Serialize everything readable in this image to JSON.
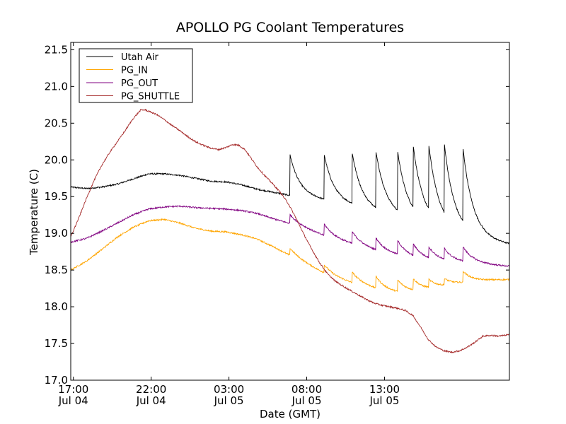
{
  "chart_data": {
    "type": "line",
    "title": "APOLLO PG Coolant Temperatures",
    "xlabel": "Date (GMT)",
    "ylabel": "Temperature (C)",
    "x_unit": "hours since Jul 04 16:50 GMT",
    "xlim": [
      0,
      28.2
    ],
    "ylim": [
      17.0,
      21.6
    ],
    "y_ticks": [
      "17.0",
      "17.5",
      "18.0",
      "18.5",
      "19.0",
      "19.5",
      "20.0",
      "20.5",
      "21.0",
      "21.5"
    ],
    "y_tick_values": [
      17.0,
      17.5,
      18.0,
      18.5,
      19.0,
      19.5,
      20.0,
      20.5,
      21.0,
      21.5
    ],
    "x_ticks": [
      {
        "value": 0.17,
        "line1": "17:00",
        "line2": "Jul 04"
      },
      {
        "value": 5.17,
        "line1": "22:00",
        "line2": "Jul 04"
      },
      {
        "value": 10.17,
        "line1": "03:00",
        "line2": "Jul 05"
      },
      {
        "value": 15.17,
        "line1": "08:00",
        "line2": "Jul 05"
      },
      {
        "value": 20.17,
        "line1": "13:00",
        "line2": "Jul 05"
      }
    ],
    "legend_position": "top-left",
    "series": [
      {
        "name": "Utah Air",
        "color": "#000000",
        "points": [
          [
            0,
            19.63
          ],
          [
            1,
            19.61
          ],
          [
            2,
            19.63
          ],
          [
            3,
            19.67
          ],
          [
            4,
            19.74
          ],
          [
            5,
            19.81
          ],
          [
            6,
            19.81
          ],
          [
            7,
            19.79
          ],
          [
            8,
            19.75
          ],
          [
            9,
            19.71
          ],
          [
            10,
            19.7
          ],
          [
            11,
            19.66
          ],
          [
            12,
            19.6
          ],
          [
            13,
            19.56
          ],
          [
            14,
            19.52
          ],
          [
            15,
            19.49
          ],
          [
            16,
            19.46
          ],
          [
            17,
            19.42
          ],
          [
            18,
            19.38
          ],
          [
            19,
            19.32
          ],
          [
            20,
            19.28
          ],
          [
            21,
            19.23
          ],
          [
            22,
            19.18
          ],
          [
            23,
            19.13
          ],
          [
            24,
            19.07
          ],
          [
            25,
            19.01
          ],
          [
            26,
            18.96
          ],
          [
            27,
            18.9
          ],
          [
            28.2,
            18.85
          ]
        ],
        "spikes": [
          [
            14.1,
            20.13
          ],
          [
            16.3,
            20.12
          ],
          [
            18.1,
            20.13
          ],
          [
            19.6,
            20.17
          ],
          [
            21.0,
            20.14
          ],
          [
            22.0,
            20.14
          ],
          [
            23.0,
            20.13
          ],
          [
            24.0,
            20.14
          ],
          [
            25.2,
            20.14
          ]
        ],
        "spike_decay": 0.62
      },
      {
        "name": "PG_IN",
        "color": "#ffa500",
        "points": [
          [
            0,
            18.5
          ],
          [
            1,
            18.62
          ],
          [
            2,
            18.78
          ],
          [
            3,
            18.95
          ],
          [
            4,
            19.08
          ],
          [
            5,
            19.17
          ],
          [
            6,
            19.19
          ],
          [
            7,
            19.14
          ],
          [
            8,
            19.07
          ],
          [
            9,
            19.03
          ],
          [
            10,
            19.02
          ],
          [
            11,
            18.98
          ],
          [
            12,
            18.92
          ],
          [
            13,
            18.82
          ],
          [
            14,
            18.71
          ],
          [
            15,
            18.6
          ],
          [
            16,
            18.49
          ],
          [
            17,
            18.4
          ],
          [
            18,
            18.33
          ],
          [
            19,
            18.28
          ],
          [
            20,
            18.22
          ],
          [
            21,
            18.19
          ],
          [
            22,
            18.2
          ],
          [
            23,
            18.23
          ],
          [
            24,
            18.27
          ],
          [
            25,
            18.31
          ],
          [
            26,
            18.34
          ],
          [
            27,
            18.36
          ],
          [
            28.2,
            18.37
          ]
        ],
        "spikes": [
          [
            14.1,
            18.81
          ],
          [
            16.3,
            18.58
          ],
          [
            18.1,
            18.48
          ],
          [
            19.6,
            18.43
          ],
          [
            21.0,
            18.37
          ],
          [
            22.0,
            18.37
          ],
          [
            23.0,
            18.35
          ],
          [
            24.0,
            18.37
          ],
          [
            25.2,
            18.49
          ]
        ],
        "spike_decay": 0.62
      },
      {
        "name": "PG_OUT",
        "color": "#800080",
        "points": [
          [
            0,
            18.88
          ],
          [
            1,
            18.93
          ],
          [
            2,
            19.03
          ],
          [
            3,
            19.14
          ],
          [
            4,
            19.25
          ],
          [
            5,
            19.33
          ],
          [
            6,
            19.36
          ],
          [
            7,
            19.37
          ],
          [
            8,
            19.35
          ],
          [
            9,
            19.34
          ],
          [
            10,
            19.33
          ],
          [
            11,
            19.31
          ],
          [
            12,
            19.27
          ],
          [
            13,
            19.2
          ],
          [
            14,
            19.14
          ],
          [
            15,
            19.07
          ],
          [
            16,
            18.99
          ],
          [
            17,
            18.92
          ],
          [
            18,
            18.86
          ],
          [
            19,
            18.8
          ],
          [
            20,
            18.74
          ],
          [
            21,
            18.7
          ],
          [
            22,
            18.66
          ],
          [
            23,
            18.63
          ],
          [
            24,
            18.61
          ],
          [
            25,
            18.6
          ],
          [
            26,
            18.59
          ],
          [
            27,
            18.57
          ],
          [
            28.2,
            18.55
          ]
        ],
        "spikes": [
          [
            14.1,
            19.27
          ],
          [
            16.3,
            19.14
          ],
          [
            18.1,
            19.03
          ],
          [
            19.6,
            18.95
          ],
          [
            21.0,
            18.91
          ],
          [
            22.0,
            18.84
          ],
          [
            23.0,
            18.8
          ],
          [
            24.0,
            18.78
          ],
          [
            25.2,
            18.82
          ]
        ],
        "spike_decay": 0.62
      },
      {
        "name": "PG_SHUTTLE",
        "color": "#a52a2a",
        "points": [
          [
            0,
            18.95
          ],
          [
            0.5,
            19.2
          ],
          [
            1,
            19.47
          ],
          [
            1.5,
            19.72
          ],
          [
            2,
            19.93
          ],
          [
            2.5,
            20.1
          ],
          [
            3,
            20.25
          ],
          [
            3.5,
            20.4
          ],
          [
            4,
            20.56
          ],
          [
            4.5,
            20.68
          ],
          [
            4.8,
            20.68
          ],
          [
            5.5,
            20.62
          ],
          [
            6,
            20.55
          ],
          [
            6.5,
            20.47
          ],
          [
            7,
            20.4
          ],
          [
            7.5,
            20.32
          ],
          [
            8,
            20.25
          ],
          [
            8.5,
            20.2
          ],
          [
            9,
            20.16
          ],
          [
            9.5,
            20.14
          ],
          [
            10,
            20.17
          ],
          [
            10.4,
            20.21
          ],
          [
            10.8,
            20.2
          ],
          [
            11.2,
            20.14
          ],
          [
            11.6,
            20.02
          ],
          [
            12,
            19.9
          ],
          [
            12.5,
            19.78
          ],
          [
            13,
            19.67
          ],
          [
            13.5,
            19.55
          ],
          [
            14,
            19.4
          ],
          [
            14.5,
            19.2
          ],
          [
            15,
            18.98
          ],
          [
            15.5,
            18.78
          ],
          [
            16,
            18.6
          ],
          [
            16.5,
            18.45
          ],
          [
            17,
            18.35
          ],
          [
            17.5,
            18.28
          ],
          [
            18,
            18.22
          ],
          [
            18.5,
            18.16
          ],
          [
            19,
            18.1
          ],
          [
            19.5,
            18.05
          ],
          [
            20,
            18.02
          ],
          [
            20.5,
            18.0
          ],
          [
            21,
            17.98
          ],
          [
            21.5,
            17.95
          ],
          [
            22,
            17.88
          ],
          [
            22.5,
            17.72
          ],
          [
            23,
            17.55
          ],
          [
            23.5,
            17.45
          ],
          [
            24,
            17.4
          ],
          [
            24.5,
            17.38
          ],
          [
            25,
            17.4
          ],
          [
            25.5,
            17.45
          ],
          [
            26,
            17.52
          ],
          [
            26.5,
            17.6
          ],
          [
            27,
            17.61
          ],
          [
            27.5,
            17.6
          ],
          [
            28.2,
            17.62
          ]
        ],
        "spikes": [],
        "spike_decay": 0.62
      }
    ]
  }
}
